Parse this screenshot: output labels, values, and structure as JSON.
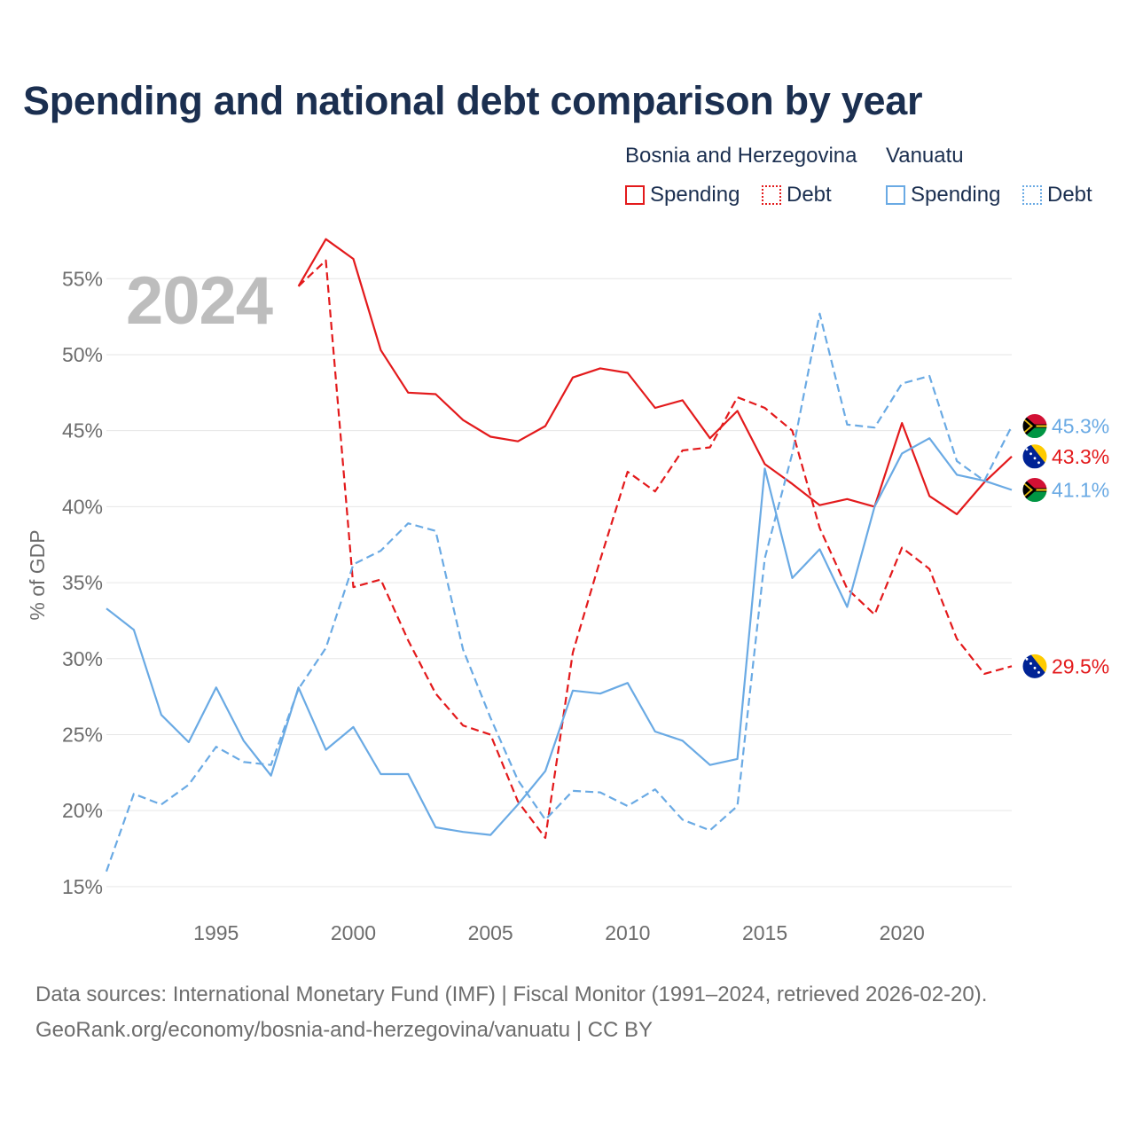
{
  "title": "Spending and national debt comparison by year",
  "year_label": "2024",
  "legend": {
    "country_a": "Bosnia and Herzegovina",
    "country_b": "Vanuatu",
    "spending": "Spending",
    "debt": "Debt"
  },
  "colors": {
    "bosnia": "#e31a1c",
    "vanuatu": "#6aaae4"
  },
  "footer": {
    "line1": "Data sources: International Monetary Fund (IMF) | Fiscal Monitor (1991–2024, retrieved 2026-02-20).",
    "line2": "GeoRank.org/economy/bosnia-and-herzegovina/vanuatu | CC BY"
  },
  "chart_data": {
    "type": "line",
    "ylabel": "% of GDP",
    "xlim": [
      1991,
      2024
    ],
    "ylim": [
      14,
      57
    ],
    "y_ticks": [
      15,
      20,
      25,
      30,
      35,
      40,
      45,
      50,
      55
    ],
    "y_tick_labels": [
      "15%",
      "20%",
      "25%",
      "30%",
      "35%",
      "40%",
      "45%",
      "50%",
      "55%"
    ],
    "x_ticks": [
      1995,
      2000,
      2005,
      2010,
      2015,
      2020
    ],
    "x_tick_labels": [
      "1995",
      "2000",
      "2005",
      "2010",
      "2015",
      "2020"
    ],
    "series": [
      {
        "name": "Bosnia and Herzegovina Spending",
        "country": "bosnia",
        "style": "solid",
        "x": [
          1998,
          1999,
          2000,
          2001,
          2002,
          2003,
          2004,
          2005,
          2006,
          2007,
          2008,
          2009,
          2010,
          2011,
          2012,
          2013,
          2014,
          2015,
          2016,
          2017,
          2018,
          2019,
          2020,
          2021,
          2022,
          2023,
          2024
        ],
        "values": [
          54.5,
          57.6,
          56.3,
          50.3,
          47.5,
          47.4,
          45.7,
          44.6,
          44.3,
          45.3,
          48.5,
          49.1,
          48.8,
          46.5,
          47.0,
          44.5,
          46.3,
          42.8,
          41.5,
          40.1,
          40.5,
          40.0,
          45.5,
          40.7,
          39.5,
          41.6,
          43.3
        ],
        "end_label": "43.3%"
      },
      {
        "name": "Bosnia and Herzegovina Debt",
        "country": "bosnia",
        "style": "dashed",
        "x": [
          1998,
          1999,
          2000,
          2001,
          2002,
          2003,
          2004,
          2005,
          2006,
          2007,
          2008,
          2009,
          2010,
          2011,
          2012,
          2013,
          2014,
          2015,
          2016,
          2017,
          2018,
          2019,
          2020,
          2021,
          2022,
          2023,
          2024
        ],
        "values": [
          54.5,
          56.2,
          34.7,
          35.2,
          31.2,
          27.7,
          25.6,
          25.0,
          20.6,
          18.2,
          30.4,
          36.5,
          42.3,
          41.0,
          43.7,
          43.9,
          47.2,
          46.5,
          45.0,
          38.6,
          34.6,
          32.9,
          37.3,
          35.9,
          31.3,
          29.0,
          29.5
        ],
        "end_label": "29.5%"
      },
      {
        "name": "Vanuatu Spending",
        "country": "vanuatu",
        "style": "solid",
        "x": [
          1991,
          1992,
          1993,
          1994,
          1995,
          1996,
          1997,
          1998,
          1999,
          2000,
          2001,
          2002,
          2003,
          2004,
          2005,
          2006,
          2007,
          2008,
          2009,
          2010,
          2011,
          2012,
          2013,
          2014,
          2015,
          2016,
          2017,
          2018,
          2019,
          2020,
          2021,
          2022,
          2023,
          2024
        ],
        "values": [
          33.3,
          31.9,
          26.3,
          24.5,
          28.1,
          24.6,
          22.3,
          28.1,
          24.0,
          25.5,
          22.4,
          22.4,
          18.9,
          18.6,
          18.4,
          20.4,
          22.6,
          27.9,
          27.7,
          28.4,
          25.2,
          24.6,
          23.0,
          23.4,
          42.5,
          35.3,
          37.2,
          33.4,
          40.0,
          43.5,
          44.5,
          42.1,
          41.7,
          41.1
        ],
        "end_label": "41.1%"
      },
      {
        "name": "Vanuatu Debt",
        "country": "vanuatu",
        "style": "dashed",
        "x": [
          1991,
          1992,
          1993,
          1994,
          1995,
          1996,
          1997,
          1998,
          1999,
          2000,
          2001,
          2002,
          2003,
          2004,
          2005,
          2006,
          2007,
          2008,
          2009,
          2010,
          2011,
          2012,
          2013,
          2014,
          2015,
          2016,
          2017,
          2018,
          2019,
          2020,
          2021,
          2022,
          2023,
          2024
        ],
        "values": [
          16.0,
          21.1,
          20.4,
          21.7,
          24.2,
          23.2,
          23.0,
          28.0,
          30.7,
          36.2,
          37.1,
          38.9,
          38.4,
          30.6,
          26.1,
          22.0,
          19.4,
          21.3,
          21.2,
          20.3,
          21.4,
          19.4,
          18.7,
          20.3,
          36.6,
          43.5,
          52.7,
          45.4,
          45.2,
          48.1,
          48.6,
          43.0,
          41.7,
          45.3
        ],
        "end_label": "45.3%"
      }
    ]
  }
}
